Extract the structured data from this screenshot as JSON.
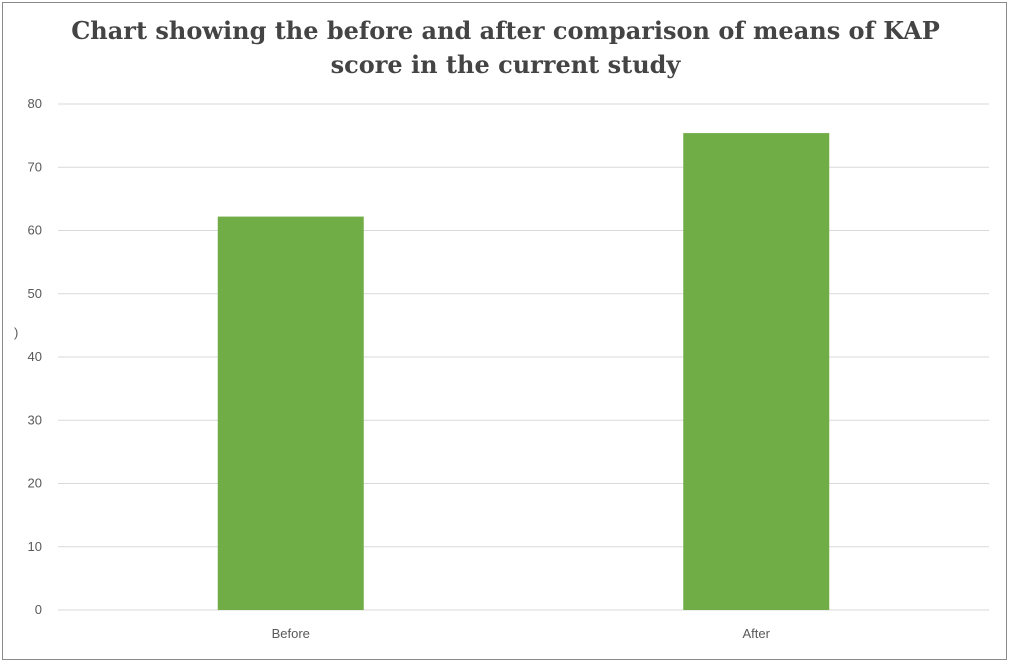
{
  "chart_data": {
    "type": "bar",
    "title_lines": [
      "Chart showing the before and after comparison of means of KAP",
      "score in the current study"
    ],
    "categories": [
      "Before",
      "After"
    ],
    "values": [
      62.2,
      75.4
    ],
    "ylim": [
      0,
      80
    ],
    "yticks": [
      0,
      10,
      20,
      30,
      40,
      50,
      60,
      70,
      80
    ],
    "ylabel": ")",
    "grid": true,
    "bar_color": "#70ad47",
    "gridline_color": "#d9d9d9",
    "axis_color": "#d9d9d9"
  }
}
